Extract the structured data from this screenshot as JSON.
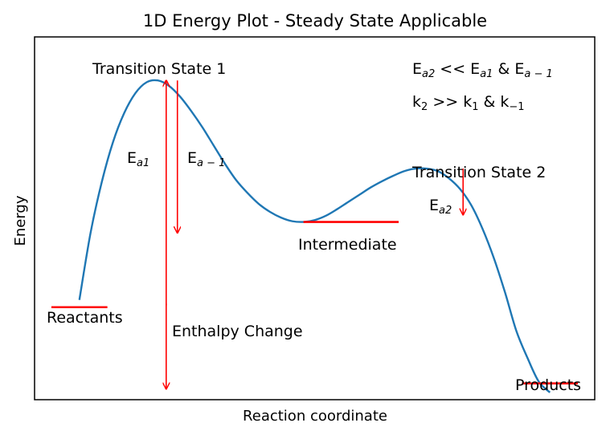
{
  "chart_data": {
    "type": "line",
    "title": "1D Energy Plot - Steady State Applicable",
    "xlabel": "Reaction coordinate",
    "ylabel": "Energy",
    "grid": false,
    "ticks": "none",
    "curve_color": "#1f77b4",
    "marker_color": "#ff0000",
    "curve": {
      "x": [
        0.08,
        0.1,
        0.12,
        0.14,
        0.16,
        0.18,
        0.2,
        0.22,
        0.24,
        0.26,
        0.28,
        0.3,
        0.32,
        0.34,
        0.36,
        0.38,
        0.4,
        0.42,
        0.44,
        0.46,
        0.48,
        0.5,
        0.52,
        0.54,
        0.56,
        0.58,
        0.6,
        0.62,
        0.64,
        0.66,
        0.68,
        0.7,
        0.72,
        0.74,
        0.76,
        0.78,
        0.8,
        0.82,
        0.84,
        0.86,
        0.88,
        0.9,
        0.92
      ],
      "y": [
        2.75,
        4.6,
        6.0,
        7.1,
        7.9,
        8.45,
        8.75,
        8.8,
        8.65,
        8.35,
        7.95,
        7.5,
        7.0,
        6.5,
        6.05,
        5.7,
        5.4,
        5.18,
        5.02,
        4.92,
        4.9,
        4.95,
        5.07,
        5.25,
        5.45,
        5.65,
        5.85,
        6.02,
        6.17,
        6.3,
        6.37,
        6.37,
        6.3,
        6.1,
        5.8,
        5.35,
        4.7,
        3.9,
        2.95,
        1.9,
        1.15,
        0.5,
        0.2
      ]
    },
    "levels": [
      {
        "name": "Reactants",
        "y": 2.55,
        "x_range": [
          0.03,
          0.13
        ]
      },
      {
        "name": "Intermediate",
        "y": 4.9,
        "x_range": [
          0.48,
          0.65
        ]
      },
      {
        "name": "Products",
        "y": 0.45,
        "x_range": [
          0.87,
          0.97
        ]
      }
    ],
    "arrows": [
      {
        "x": 0.235,
        "y_from": 2.6,
        "y_to": 8.8
      },
      {
        "x": 0.255,
        "y_from": 8.8,
        "y_to": 4.6
      },
      {
        "x": 0.765,
        "y_from": 6.37,
        "y_to": 5.1
      },
      {
        "x": 0.235,
        "y_from": 2.65,
        "y_to": 0.3
      }
    ],
    "annotations": {
      "ts1": "Transition State 1",
      "ts2": "Transition State 2",
      "reactants": "Reactants",
      "intermediate": "Intermediate",
      "products": "Products",
      "enthalpy": "Enthalpy Change",
      "ea1": {
        "main": "E",
        "sub": "a1"
      },
      "ea_minus1": {
        "main": "E",
        "sub": "a − 1"
      },
      "ea2": {
        "main": "E",
        "sub": "a2"
      },
      "relation1": {
        "parts": [
          "E",
          "a2",
          " << E",
          "a1",
          " & E",
          "a − 1"
        ]
      },
      "relation2": {
        "parts": [
          "k",
          "2",
          " >> k",
          "1",
          " & k",
          "−1"
        ]
      }
    },
    "xlim": [
      0,
      1
    ],
    "ylim": [
      0,
      10
    ]
  }
}
